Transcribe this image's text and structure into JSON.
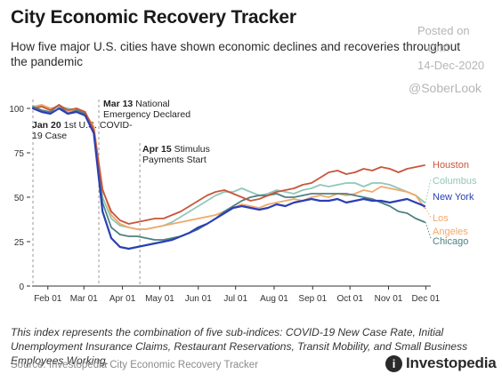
{
  "title": "City Economic Recovery Tracker",
  "subtitle": "How five major U.S. cities have shown economic declines and recoveries throughout the pandemic",
  "watermark": {
    "posted": "Posted on",
    "site": "com",
    "date": "14-Dec-2020",
    "handle": "@SoberLook"
  },
  "note": "This index represents the combination of five sub-indices: COVID-19 New Case Rate, Initial Unemployment Insurance Claims, Restaurant Reservations, Transit Mobility, and Small Business Employees Working.",
  "source": "Source: Investopedia City Economic Recovery Tracker",
  "logo": {
    "mark": "i",
    "text": "Investopedia"
  },
  "chart_data": {
    "type": "line",
    "title": "City Economic Recovery Tracker",
    "xlabel": "",
    "ylabel": "",
    "x_ticks": [
      "Feb 01",
      "Mar 01",
      "Apr 01",
      "May 01",
      "Jun 01",
      "Jul 01",
      "Aug 01",
      "Sep 01",
      "Oct 01",
      "Nov 01",
      "Dec 01"
    ],
    "y_ticks": [
      0,
      25,
      50,
      75,
      100
    ],
    "ylim": [
      0,
      105
    ],
    "x_unit": "date (2020)",
    "grid": false,
    "legend": "direct labels at right end of lines",
    "annotations": [
      {
        "date": "2020-01-20",
        "bold": "Jan 20",
        "lines": [
          "1st U.S. COVID-",
          "19 Case"
        ]
      },
      {
        "date": "2020-03-13",
        "bold": "Mar 13",
        "lines": [
          "National",
          "Emergency Declared"
        ]
      },
      {
        "date": "2020-04-15",
        "bold": "Apr 15",
        "lines": [
          "Stimulus",
          "Payments Start"
        ]
      }
    ],
    "dates": [
      "2020-01-20",
      "2020-01-27",
      "2020-02-03",
      "2020-02-10",
      "2020-02-17",
      "2020-02-24",
      "2020-03-02",
      "2020-03-09",
      "2020-03-16",
      "2020-03-23",
      "2020-03-30",
      "2020-04-06",
      "2020-04-13",
      "2020-04-20",
      "2020-04-27",
      "2020-05-04",
      "2020-05-11",
      "2020-05-18",
      "2020-05-25",
      "2020-06-01",
      "2020-06-08",
      "2020-06-15",
      "2020-06-22",
      "2020-06-29",
      "2020-07-06",
      "2020-07-13",
      "2020-07-20",
      "2020-07-27",
      "2020-08-03",
      "2020-08-10",
      "2020-08-17",
      "2020-08-24",
      "2020-08-31",
      "2020-09-07",
      "2020-09-14",
      "2020-09-21",
      "2020-09-28",
      "2020-10-05",
      "2020-10-12",
      "2020-10-19",
      "2020-10-26",
      "2020-11-02",
      "2020-11-09",
      "2020-11-16",
      "2020-11-23",
      "2020-11-30"
    ],
    "series": [
      {
        "name": "Houston",
        "color": "#c8563c",
        "values": [
          100,
          101,
          99,
          102,
          99,
          100,
          98,
          88,
          54,
          42,
          37,
          35,
          36,
          37,
          38,
          38,
          40,
          42,
          45,
          48,
          51,
          53,
          54,
          52,
          50,
          48,
          49,
          51,
          53,
          54,
          55,
          57,
          58,
          61,
          64,
          65,
          63,
          64,
          66,
          65,
          67,
          66,
          64,
          66,
          67,
          68
        ]
      },
      {
        "name": "Columbus",
        "color": "#8fc8ba",
        "values": [
          101,
          102,
          100,
          101,
          100,
          99,
          97,
          88,
          50,
          38,
          34,
          33,
          32,
          32,
          33,
          34,
          36,
          39,
          42,
          45,
          48,
          51,
          53,
          53,
          55,
          53,
          51,
          52,
          54,
          53,
          52,
          54,
          55,
          57,
          56,
          57,
          58,
          58,
          56,
          58,
          58,
          57,
          55,
          53,
          51,
          47
        ]
      },
      {
        "name": "New York",
        "color": "#2a3fb5",
        "values": [
          100,
          98,
          97,
          100,
          97,
          98,
          96,
          86,
          42,
          27,
          22,
          21,
          22,
          23,
          24,
          25,
          26,
          28,
          30,
          33,
          35,
          38,
          41,
          44,
          45,
          44,
          43,
          44,
          46,
          45,
          47,
          48,
          49,
          48,
          48,
          49,
          47,
          48,
          49,
          48,
          48,
          47,
          48,
          49,
          47,
          45
        ]
      },
      {
        "name": "Los Angeles",
        "color": "#f2a86a",
        "values": [
          100,
          102,
          100,
          101,
          98,
          100,
          97,
          90,
          55,
          40,
          35,
          33,
          32,
          32,
          33,
          34,
          35,
          36,
          37,
          38,
          39,
          40,
          42,
          44,
          46,
          45,
          44,
          46,
          47,
          48,
          49,
          48,
          50,
          51,
          50,
          52,
          51,
          52,
          54,
          53,
          56,
          55,
          54,
          53,
          51,
          44
        ]
      },
      {
        "name": "Chicago",
        "color": "#4f8083",
        "values": [
          101,
          99,
          98,
          102,
          97,
          99,
          97,
          87,
          47,
          33,
          29,
          28,
          28,
          27,
          26,
          26,
          27,
          28,
          30,
          32,
          35,
          38,
          42,
          45,
          48,
          50,
          51,
          51,
          52,
          50,
          50,
          51,
          52,
          52,
          52,
          52,
          52,
          51,
          50,
          49,
          47,
          45,
          42,
          41,
          38,
          36
        ]
      }
    ]
  },
  "end_labels": [
    {
      "text": "Houston",
      "color": "#c8563c"
    },
    {
      "text": "Columbus",
      "color": "#8fc8ba"
    },
    {
      "text": "New York",
      "color": "#2a3fb5"
    },
    {
      "text": "Los",
      "color": "#f2a86a"
    },
    {
      "text": "Angeles",
      "color": "#f2a86a"
    },
    {
      "text": "Chicago",
      "color": "#4f8083"
    }
  ]
}
